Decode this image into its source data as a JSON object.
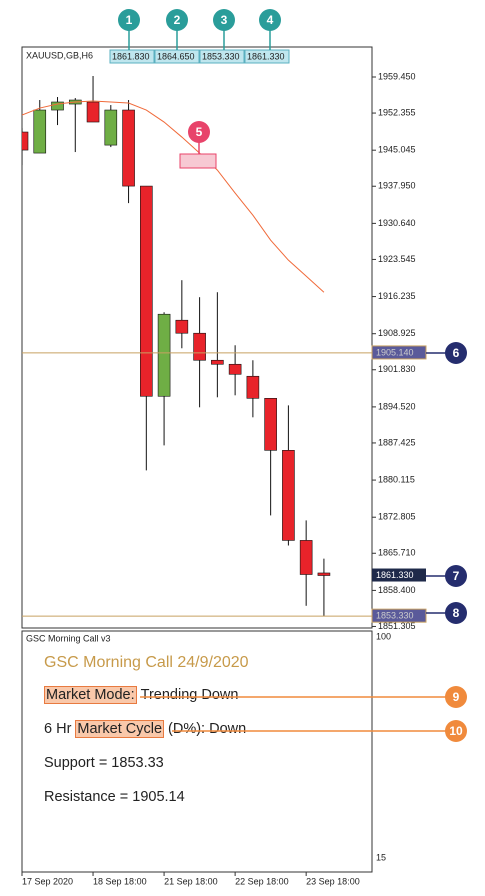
{
  "chart_data": {
    "type": "candlestick",
    "symbol": "XAUUSD,GB,H6",
    "ohlc_labels": [
      "1861.830",
      "1864.650",
      "1853.330",
      "1861.330"
    ],
    "categories": [
      "17 Sep 2020",
      null,
      null,
      null,
      "18 Sep 18:00",
      null,
      null,
      null,
      "21 Sep 18:00",
      null,
      null,
      null,
      "22 Sep 18:00",
      null,
      null,
      null,
      "23 Sep 18:00",
      null
    ],
    "open": [
      1948.62,
      1944.48,
      1952.95,
      1954.13,
      1954.53,
      1946.05,
      1952.95,
      1937.98,
      1896.61,
      1911.58,
      1909.02,
      1903.7,
      1902.91,
      1900.55,
      1896.21,
      1885.97,
      1868.24,
      1861.83
    ],
    "high": [
      1949.4,
      1954.92,
      1955.51,
      1955.31,
      1959.65,
      1953.93,
      1954.92,
      1937.98,
      1913.15,
      1919.46,
      1916.11,
      1917.09,
      1906.65,
      1903.7,
      1896.21,
      1894.83,
      1872.18,
      1864.65
    ],
    "low": [
      1942.11,
      1944.48,
      1949.99,
      1944.68,
      1950.59,
      1945.66,
      1934.63,
      1882.03,
      1886.95,
      1906.06,
      1894.44,
      1896.41,
      1896.8,
      1892.47,
      1873.16,
      1867.25,
      1855.37,
      1853.33
    ],
    "close": [
      1945.07,
      1952.95,
      1954.53,
      1954.92,
      1950.59,
      1952.95,
      1937.98,
      1896.61,
      1912.76,
      1909.02,
      1903.7,
      1902.91,
      1900.94,
      1896.21,
      1885.97,
      1868.24,
      1861.53,
      1861.33
    ],
    "up_color": "#6fae45",
    "down_color": "#e8232a",
    "moving_average": {
      "color": "#f06a3a",
      "values": [
        1951.96,
        1953.34,
        1954.13,
        1954.53,
        1954.72,
        1954.53,
        1954.33,
        1952.95,
        1950.59,
        1947.63,
        1944.48,
        1941.13,
        1936.6,
        1932.26,
        1927.34,
        1923.4,
        1920.25,
        1917.09
      ]
    },
    "ylim": [
      1851.0,
      1965.16
    ],
    "yticks": [
      {
        "value": 1959.45,
        "label": "1959.450"
      },
      {
        "value": 1952.355,
        "label": "1952.355"
      },
      {
        "value": 1945.045,
        "label": "1945.045"
      },
      {
        "value": 1937.95,
        "label": "1937.950"
      },
      {
        "value": 1930.64,
        "label": "1930.640"
      },
      {
        "value": 1923.545,
        "label": "1923.545"
      },
      {
        "value": 1916.235,
        "label": "1916.235"
      },
      {
        "value": 1908.925,
        "label": "1908.925"
      },
      {
        "value": 1901.83,
        "label": "1901.830"
      },
      {
        "value": 1894.52,
        "label": "1894.520"
      },
      {
        "value": 1887.425,
        "label": "1887.425"
      },
      {
        "value": 1880.115,
        "label": "1880.115"
      },
      {
        "value": 1872.805,
        "label": "1872.805"
      },
      {
        "value": 1865.71,
        "label": "1865.710"
      },
      {
        "value": 1858.4,
        "label": "1858.400"
      },
      {
        "value": 1851.305,
        "label": "1851.305"
      }
    ],
    "hlines": [
      {
        "value": 1905.14,
        "label": "1905.140",
        "color": "#c8a060",
        "box": "#5a5a9a"
      },
      {
        "value": 1853.33,
        "label": "1853.330",
        "color": "#c8a060",
        "box": "#5a5a9a"
      }
    ],
    "current_price": {
      "value": 1861.33,
      "label": "1861.330",
      "box": "#1f2a4a"
    }
  },
  "indicator": {
    "name": "GSC Morning Call v3",
    "title": "GSC Morning Call 24/9/2020",
    "lines": [
      [
        {
          "text": "Market Mode:",
          "boxed": true
        },
        {
          "text": "Trending Down"
        }
      ],
      [
        {
          "text": "6 Hr"
        },
        {
          "text": "Market Cycle",
          "boxed": true
        },
        {
          "text": "(D%): Down"
        }
      ],
      [
        {
          "text": "Support = 1853.33"
        }
      ],
      [
        {
          "text": "Resistance = 1905.14"
        }
      ]
    ],
    "yticks": [
      100,
      15
    ]
  },
  "annotations": [
    {
      "label": "1",
      "color": "#2a9d9a"
    },
    {
      "label": "2",
      "color": "#2a9d9a"
    },
    {
      "label": "3",
      "color": "#2a9d9a"
    },
    {
      "label": "4",
      "color": "#2a9d9a"
    },
    {
      "label": "5",
      "color": "#e8436a"
    },
    {
      "label": "6",
      "color": "#252d6e"
    },
    {
      "label": "7",
      "color": "#252d6e"
    },
    {
      "label": "8",
      "color": "#252d6e"
    },
    {
      "label": "9",
      "color": "#f08a3c"
    },
    {
      "label": "10",
      "color": "#f08a3c"
    }
  ]
}
